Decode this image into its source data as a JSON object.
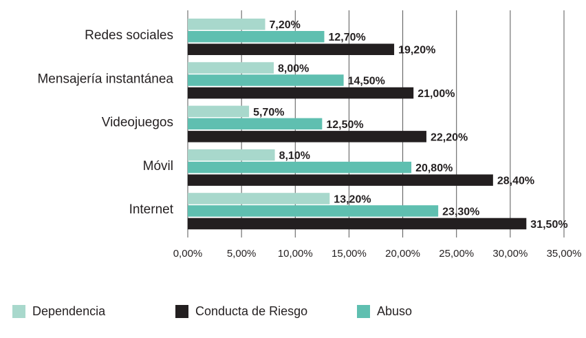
{
  "chart_data": {
    "type": "bar",
    "orientation": "horizontal",
    "categories": [
      "Redes sociales",
      "Mensajería instantánea",
      "Videojuegos",
      "Móvil",
      "Internet"
    ],
    "series": [
      {
        "name": "Dependencia",
        "color": "#a8d8cc",
        "values": [
          7.2,
          8.0,
          5.7,
          8.1,
          13.2
        ],
        "value_labels": [
          "7,20%",
          "8,00%",
          "5,70%",
          "8,10%",
          "13,20%"
        ]
      },
      {
        "name": "Conducta de Riesgo",
        "color": "#231f20",
        "values": [
          19.2,
          21.0,
          22.2,
          28.4,
          31.5
        ],
        "value_labels": [
          "19,20%",
          "21,00%",
          "22,20%",
          "28,40%",
          "31,50%"
        ]
      },
      {
        "name": "Abuso",
        "color": "#5fbfb0",
        "values": [
          12.7,
          14.5,
          12.5,
          20.8,
          23.3
        ],
        "value_labels": [
          "12,70%",
          "14,50%",
          "12,50%",
          "20,80%",
          "23,30%"
        ]
      }
    ],
    "xlim": [
      0,
      35
    ],
    "xticks": [
      {
        "value": 0,
        "label": "0,00%"
      },
      {
        "value": 5,
        "label": "5,00%"
      },
      {
        "value": 10,
        "label": "10,00%"
      },
      {
        "value": 15,
        "label": "15,00%"
      },
      {
        "value": 20,
        "label": "20,00%"
      },
      {
        "value": 25,
        "label": "25,00%"
      },
      {
        "value": 30,
        "label": "30,00%"
      },
      {
        "value": 35,
        "label": "35,00%"
      }
    ],
    "grid": true,
    "legend": "bottom"
  }
}
